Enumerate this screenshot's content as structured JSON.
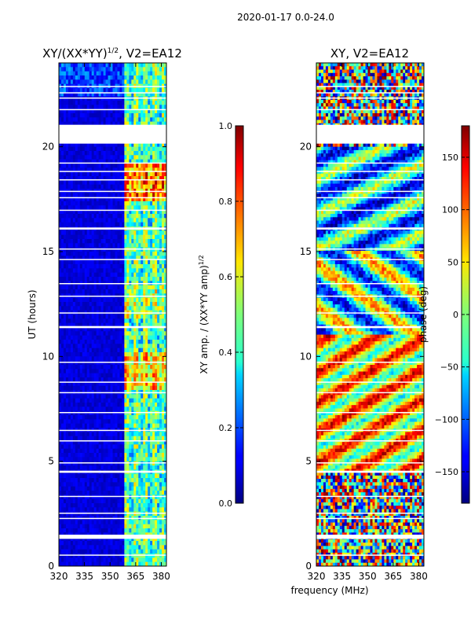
{
  "figure_title": "2020-01-17 0.0-24.0",
  "chart_data": [
    {
      "type": "heatmap",
      "title_main": "XY/(XX*YY)",
      "title_sup": "1/2",
      "title_rest": ", V2=EA12",
      "xlabel": "",
      "ylabel": "UT (hours)",
      "xlim": [
        320,
        383
      ],
      "ylim": [
        0,
        24
      ],
      "xticks": [
        320,
        335,
        350,
        365,
        380
      ],
      "yticks": [
        0,
        5,
        10,
        15,
        20
      ],
      "colormap": "jet",
      "colorbar": {
        "label_main": "XY amp. / (XX*YY amp)",
        "label_sup": "1/2",
        "range": [
          0.0,
          1.0
        ],
        "ticks": [
          "0.0",
          "0.2",
          "0.4",
          "0.6",
          "0.8",
          "1.0"
        ],
        "tick_values": [
          0.0,
          0.2,
          0.4,
          0.6,
          0.8,
          1.0
        ]
      }
    },
    {
      "type": "heatmap",
      "title_main": "XY, V2=EA12",
      "xlabel": "frequency (MHz)",
      "ylabel": "",
      "xlim": [
        320,
        383
      ],
      "ylim": [
        0,
        24
      ],
      "xticks": [
        320,
        335,
        350,
        365,
        380
      ],
      "yticks": [
        0,
        5,
        10,
        15,
        20
      ],
      "colormap": "jet",
      "colorbar": {
        "label_main": "phase (deg)",
        "range": [
          -180,
          180
        ],
        "ticks": [
          "150",
          "100",
          "50",
          "0",
          "−50",
          "−100",
          "−150"
        ],
        "tick_values": [
          150,
          100,
          50,
          0,
          -50,
          -100,
          -150
        ]
      }
    }
  ],
  "flagged_hour_ranges": [
    [
      0.5,
      0.55
    ],
    [
      1.3,
      1.5
    ],
    [
      2.25,
      2.3
    ],
    [
      2.5,
      2.55
    ],
    [
      3.3,
      3.35
    ],
    [
      4.45,
      4.55
    ],
    [
      4.9,
      4.95
    ],
    [
      5.95,
      6.0
    ],
    [
      6.45,
      6.5
    ],
    [
      7.3,
      7.35
    ],
    [
      8.25,
      8.3
    ],
    [
      8.75,
      8.8
    ],
    [
      9.7,
      9.75
    ],
    [
      11.35,
      11.45
    ],
    [
      12.05,
      12.1
    ],
    [
      12.85,
      12.9
    ],
    [
      13.45,
      13.5
    ],
    [
      14.6,
      14.65
    ],
    [
      15.1,
      15.15
    ],
    [
      16.05,
      16.15
    ],
    [
      16.95,
      17.0
    ],
    [
      17.55,
      17.6
    ],
    [
      17.85,
      17.9
    ],
    [
      18.4,
      18.45
    ],
    [
      18.8,
      18.85
    ],
    [
      19.2,
      19.25
    ],
    [
      20.15,
      21.05
    ],
    [
      21.75,
      21.8
    ],
    [
      22.3,
      22.35
    ],
    [
      22.55,
      22.6
    ],
    [
      22.85,
      22.9
    ]
  ]
}
